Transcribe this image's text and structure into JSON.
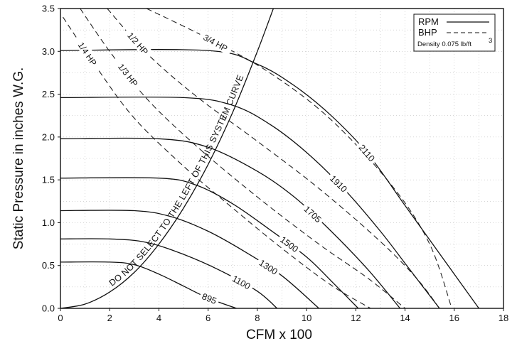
{
  "chart_data": {
    "type": "line",
    "title": "",
    "xlabel": "CFM x   100",
    "ylabel": "Static Pressure in inches W.G.",
    "xlim": [
      0,
      18
    ],
    "ylim": [
      0,
      3.5
    ],
    "x_ticks": [
      "0",
      "2",
      "4",
      "6",
      "8",
      "10",
      "12",
      "14",
      "16",
      "18"
    ],
    "y_ticks": [
      "0.0",
      "0.5",
      "1.0",
      "1.5",
      "2.0",
      "2.5",
      "3.0",
      "3.5"
    ],
    "grid": true,
    "legend": {
      "placement": "top-right",
      "entries": [
        {
          "label": "RPM",
          "style": "solid"
        },
        {
          "label": "BHP",
          "style": "dashed"
        }
      ],
      "density_text": "Density 0.075 lb/ft",
      "density_exponent": "3"
    },
    "system_curve": {
      "label": "DO NOT SELECT TO THE LEFT OF THIS SYSTEM CURVE",
      "points": [
        [
          0,
          0
        ],
        [
          1,
          0.05
        ],
        [
          2,
          0.19
        ],
        [
          3,
          0.42
        ],
        [
          4,
          0.75
        ],
        [
          5,
          1.17
        ],
        [
          6,
          1.68
        ],
        [
          7,
          2.29
        ],
        [
          8,
          3.0
        ],
        [
          8.65,
          3.5
        ]
      ]
    },
    "rpm_series": [
      {
        "label": "895",
        "points": [
          [
            0,
            0.54
          ],
          [
            2,
            0.54
          ],
          [
            3,
            0.51
          ],
          [
            4,
            0.4
          ],
          [
            5,
            0.26
          ],
          [
            6,
            0.12
          ],
          [
            7.15,
            0
          ]
        ]
      },
      {
        "label": "1100",
        "points": [
          [
            0,
            0.81
          ],
          [
            2,
            0.81
          ],
          [
            3.5,
            0.77
          ],
          [
            5,
            0.63
          ],
          [
            6.5,
            0.44
          ],
          [
            8,
            0.2
          ],
          [
            8.8,
            0
          ]
        ]
      },
      {
        "label": "1300",
        "points": [
          [
            0,
            1.14
          ],
          [
            3,
            1.14
          ],
          [
            4.5,
            1.07
          ],
          [
            6,
            0.9
          ],
          [
            7.5,
            0.66
          ],
          [
            9,
            0.38
          ],
          [
            10.5,
            0
          ]
        ]
      },
      {
        "label": "1500",
        "points": [
          [
            0,
            1.52
          ],
          [
            4,
            1.52
          ],
          [
            5.5,
            1.44
          ],
          [
            7,
            1.22
          ],
          [
            8.5,
            0.92
          ],
          [
            10,
            0.6
          ],
          [
            11,
            0.32
          ],
          [
            12.1,
            0
          ]
        ]
      },
      {
        "label": "1705",
        "points": [
          [
            0,
            1.98
          ],
          [
            4,
            1.98
          ],
          [
            6,
            1.88
          ],
          [
            8,
            1.6
          ],
          [
            9.5,
            1.3
          ],
          [
            11,
            0.9
          ],
          [
            12.5,
            0.45
          ],
          [
            13.8,
            0
          ]
        ]
      },
      {
        "label": "1910",
        "points": [
          [
            0,
            2.46
          ],
          [
            5,
            2.46
          ],
          [
            7,
            2.37
          ],
          [
            8.5,
            2.15
          ],
          [
            10,
            1.82
          ],
          [
            11.5,
            1.4
          ],
          [
            13,
            0.9
          ],
          [
            14.2,
            0.45
          ],
          [
            15.4,
            0
          ]
        ]
      },
      {
        "label": "2110",
        "points": [
          [
            0,
            3.01
          ],
          [
            6,
            3.01
          ],
          [
            8,
            2.85
          ],
          [
            9.5,
            2.6
          ],
          [
            11,
            2.25
          ],
          [
            12.5,
            1.8
          ],
          [
            14,
            1.2
          ],
          [
            15.5,
            0.6
          ],
          [
            17,
            0
          ]
        ]
      }
    ],
    "bhp_series": [
      {
        "label": "1/4 HP",
        "points": [
          [
            0.1,
            3.4
          ],
          [
            1.5,
            2.8
          ],
          [
            3,
            2.22
          ],
          [
            5,
            1.66
          ],
          [
            7,
            1.17
          ],
          [
            9,
            0.7
          ],
          [
            11,
            0.27
          ],
          [
            12.6,
            0
          ]
        ]
      },
      {
        "label": "1/3 HP",
        "points": [
          [
            0.8,
            3.5
          ],
          [
            2,
            3.0
          ],
          [
            3.5,
            2.45
          ],
          [
            5.5,
            1.9
          ],
          [
            8,
            1.3
          ],
          [
            10.5,
            0.75
          ],
          [
            12.5,
            0.35
          ],
          [
            14,
            0
          ]
        ]
      },
      {
        "label": "1/2 HP",
        "points": [
          [
            1.9,
            3.5
          ],
          [
            3.5,
            2.98
          ],
          [
            5.5,
            2.48
          ],
          [
            8,
            1.95
          ],
          [
            10.5,
            1.4
          ],
          [
            13,
            0.78
          ],
          [
            14.5,
            0.34
          ],
          [
            15.4,
            0
          ]
        ]
      },
      {
        "label": "3/4 HP",
        "points": [
          [
            3.5,
            3.5
          ],
          [
            6,
            3.15
          ],
          [
            8.5,
            2.75
          ],
          [
            11,
            2.2
          ],
          [
            13.5,
            1.42
          ],
          [
            15,
            0.75
          ],
          [
            15.9,
            0
          ]
        ]
      }
    ]
  }
}
